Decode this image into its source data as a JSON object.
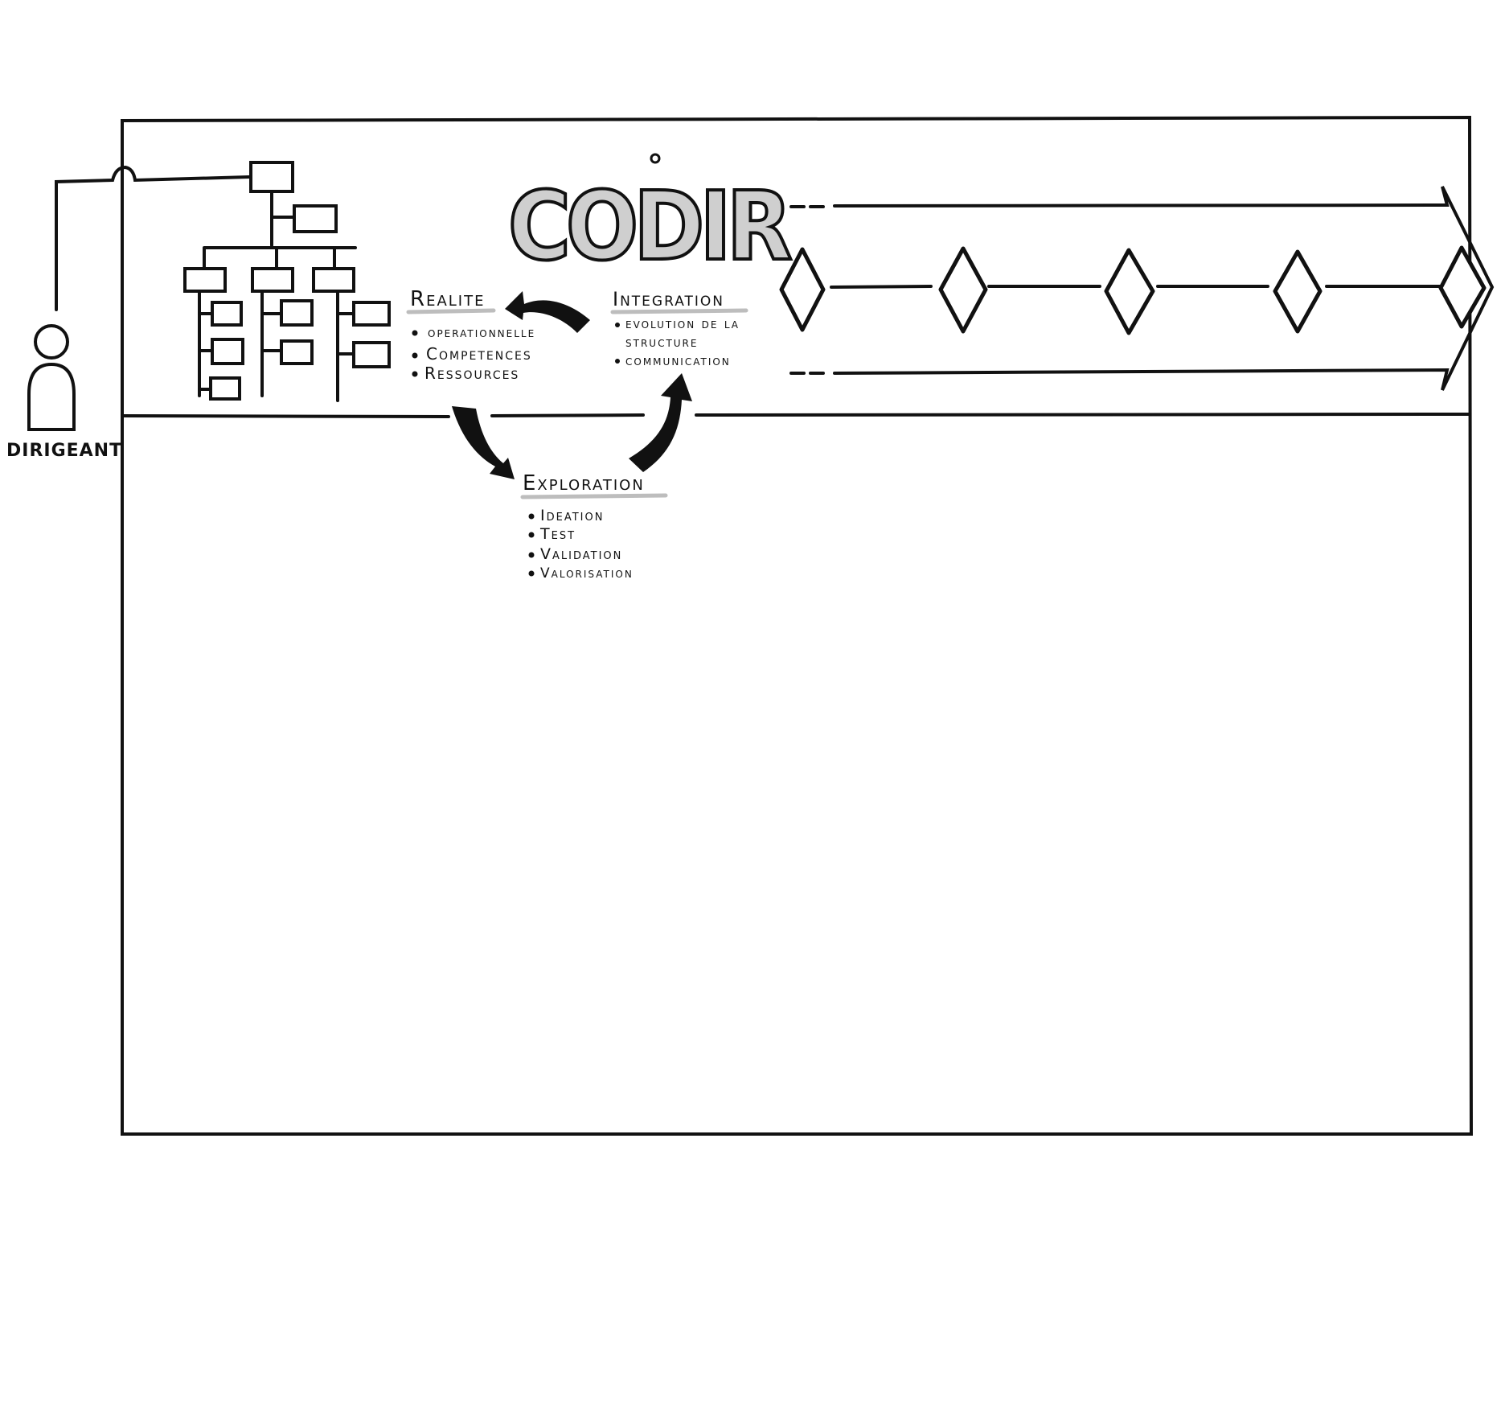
{
  "title": "CODIR",
  "person": {
    "label": "DIRIGEANT"
  },
  "cycle": {
    "realite": {
      "heading": "Realite",
      "items": [
        "operationnelle",
        "Competences",
        "Ressources"
      ]
    },
    "integration": {
      "heading": "Integration",
      "items": [
        "evolution de la structure",
        "communication"
      ]
    },
    "exploration": {
      "heading": "Exploration",
      "items": [
        "Ideation",
        "Test",
        "Validation",
        "Valorisation"
      ]
    }
  },
  "timeline": {
    "milestones": 5
  },
  "colors": {
    "ink": "#111111",
    "underline": "#bdbdbd",
    "title_fill": "#cfcfcf",
    "background": "#ffffff"
  }
}
